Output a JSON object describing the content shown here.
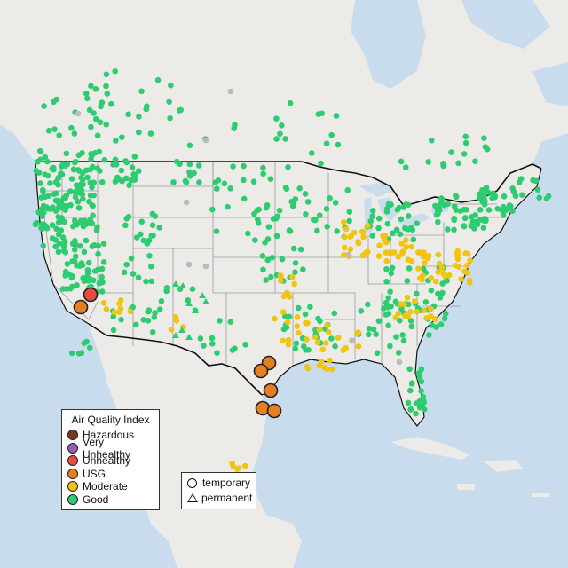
{
  "map": {
    "colors": {
      "ocean": "#c9dcee",
      "land": "#ecebe8",
      "lakes": "#c9dcee",
      "state_border": "#9a9a9a",
      "national_border": "#111111",
      "good": "#2ecc71",
      "moderate": "#f1c40f",
      "usg": "#e67e22",
      "unhealthy": "#e74c3c",
      "very_unhealthy": "#9b59b6",
      "hazardous": "#7b3522",
      "no_data": "#bbbbbb"
    }
  },
  "legend_aqi": {
    "title": "Air Quality Index",
    "items": [
      {
        "label": "Hazardous",
        "color": "#7b3522"
      },
      {
        "label": "Very Unhealthy",
        "color": "#9b59b6"
      },
      {
        "label": "Unhealthy",
        "color": "#e74c3c"
      },
      {
        "label": "USG",
        "color": "#e67e22"
      },
      {
        "label": "Moderate",
        "color": "#f1c40f"
      },
      {
        "label": "Good",
        "color": "#2ecc71"
      }
    ]
  },
  "legend_type": {
    "items": [
      {
        "label": "temporary",
        "shape": "circle"
      },
      {
        "label": "permanent",
        "shape": "triangle"
      }
    ]
  }
}
